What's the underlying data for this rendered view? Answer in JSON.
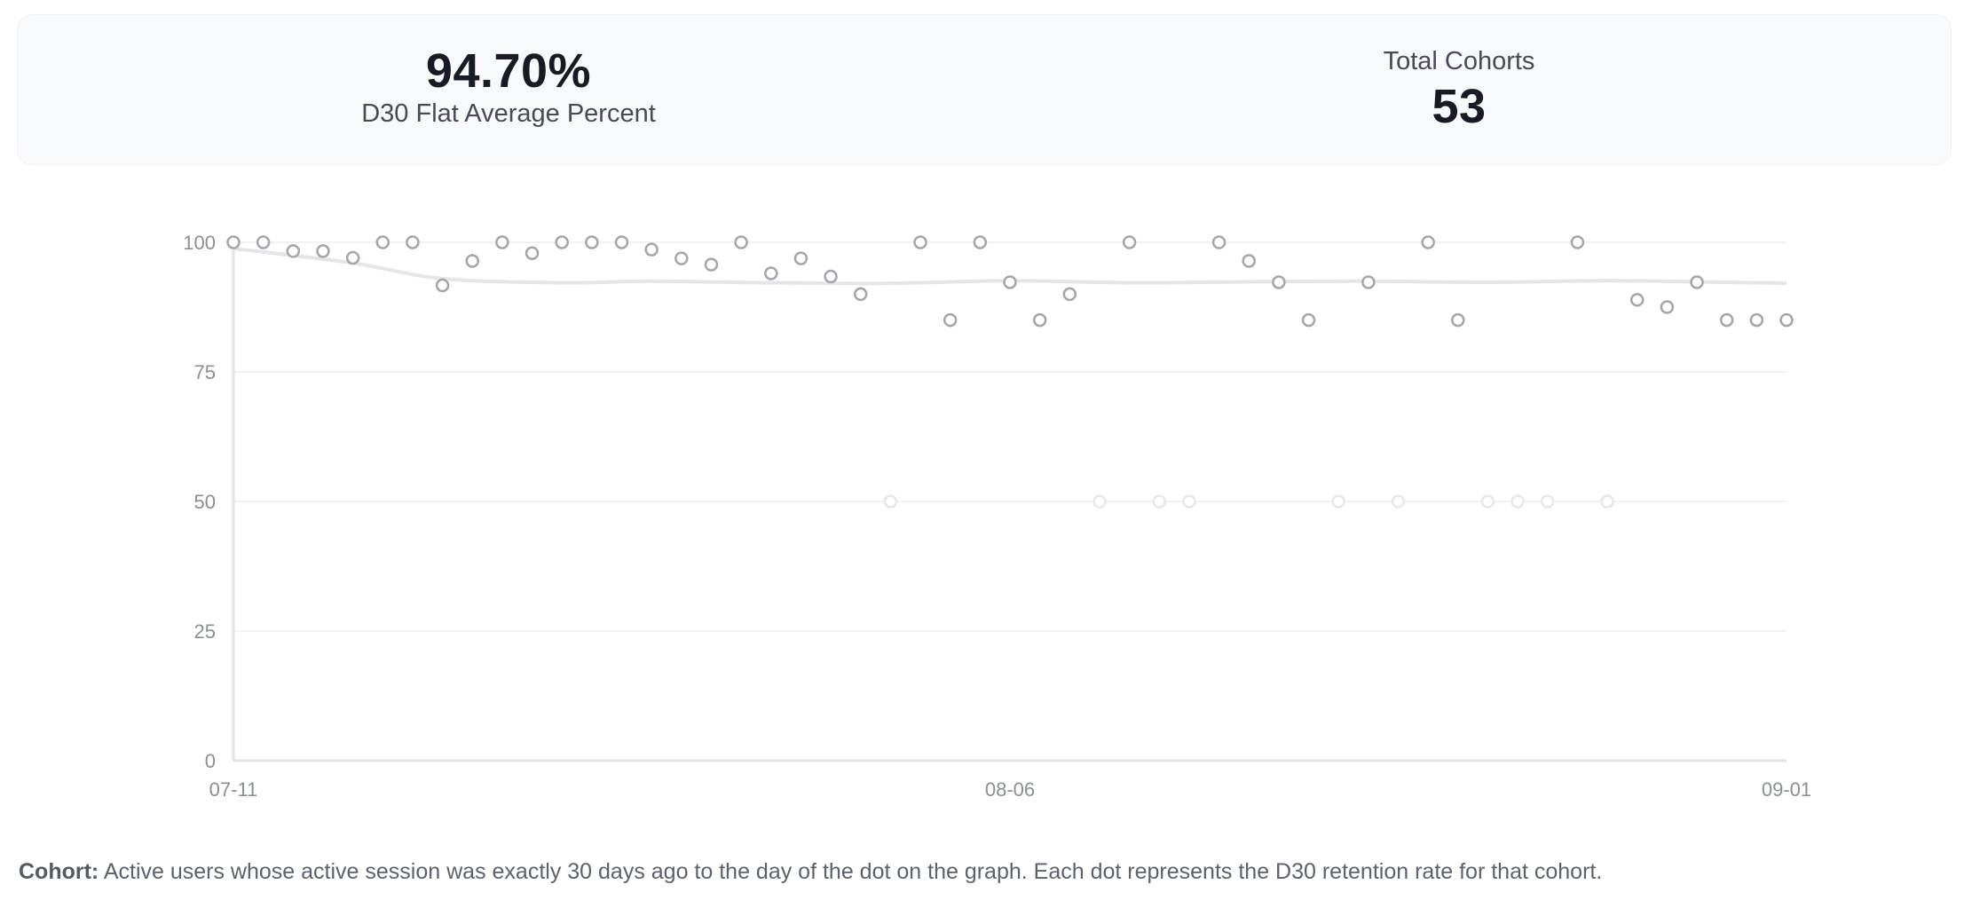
{
  "summary": {
    "average_value": "94.70%",
    "average_label": "D30 Flat Average Percent",
    "cohorts_label": "Total Cohorts",
    "cohorts_value": "53"
  },
  "chart_data": {
    "type": "scatter",
    "title": "",
    "xlabel": "",
    "ylabel": "",
    "ylim": [
      0,
      100
    ],
    "yticks": [
      0,
      25,
      50,
      75,
      100
    ],
    "x_tick_labels": [
      {
        "label": "07-11",
        "index": 0
      },
      {
        "label": "08-06",
        "index": 26
      },
      {
        "label": "09-01",
        "index": 52
      }
    ],
    "series": [
      {
        "name": "D30 retention",
        "values": [
          100,
          100,
          98.3,
          98.3,
          97,
          100,
          100,
          91.7,
          96.4,
          100,
          97.9,
          100,
          100,
          100,
          98.6,
          96.9,
          95.7,
          100,
          94,
          96.9,
          93.4,
          90,
          50,
          100,
          85,
          100,
          92.3,
          85,
          90,
          50,
          100,
          50,
          50,
          100,
          96.4,
          92.3,
          85,
          50,
          92.3,
          50,
          100,
          85,
          50,
          50,
          50,
          100,
          50,
          88.9,
          87.5,
          92.3,
          85,
          85,
          85
        ]
      }
    ],
    "trend_line": {
      "name": "average trend",
      "points": [
        {
          "index": 0,
          "value": 98.8
        },
        {
          "index": 4,
          "value": 96
        },
        {
          "index": 7,
          "value": 93
        },
        {
          "index": 11,
          "value": 92.2
        },
        {
          "index": 14,
          "value": 92.5
        },
        {
          "index": 18,
          "value": 92.2
        },
        {
          "index": 22,
          "value": 92.1
        },
        {
          "index": 26,
          "value": 92.6
        },
        {
          "index": 30,
          "value": 92.2
        },
        {
          "index": 34,
          "value": 92.4
        },
        {
          "index": 38,
          "value": 92.5
        },
        {
          "index": 42,
          "value": 92.3
        },
        {
          "index": 46,
          "value": 92.6
        },
        {
          "index": 50,
          "value": 92.3
        },
        {
          "index": 52,
          "value": 92.1
        }
      ]
    },
    "colors": {
      "point_stroke": "#a4a6ac",
      "point_faint": "#e7e8ea",
      "trend": "#e4e5e8",
      "grid": "#f1f2f4",
      "axis": "#e2e3e6",
      "tick_label": "#8a8e97"
    }
  },
  "footnote": {
    "label": "Cohort:",
    "text": "Active users whose active session was exactly 30 days ago to the day of the dot on the graph. Each dot represents the D30 retention rate for that cohort."
  }
}
